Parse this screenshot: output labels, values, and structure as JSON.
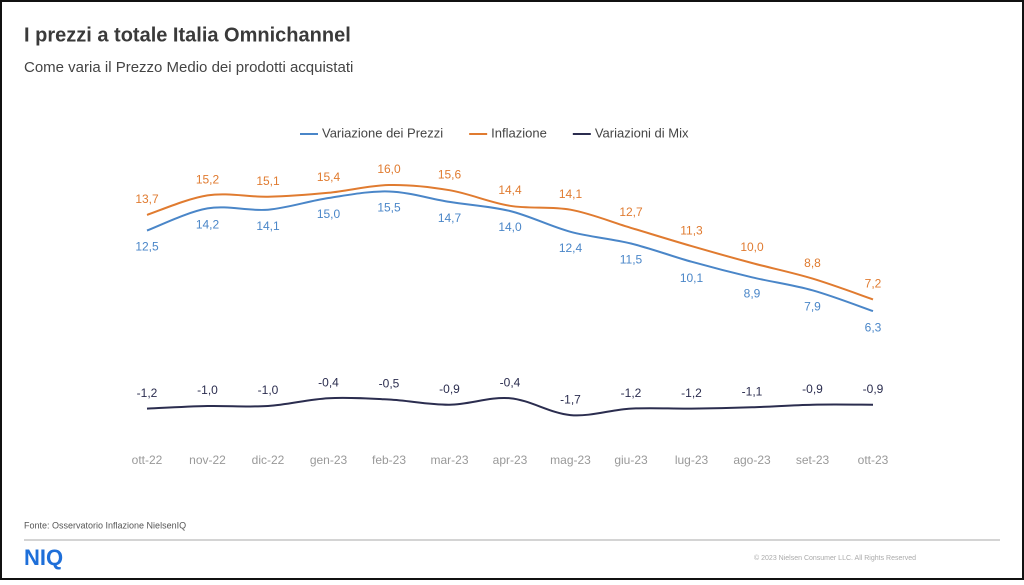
{
  "chart_data": {
    "type": "line",
    "title": "I prezzi a totale Italia Omnichannel",
    "subtitle": "Come varia il Prezzo Medio dei prodotti acquistati",
    "categories": [
      "ott-22",
      "nov-22",
      "dic-22",
      "gen-23",
      "feb-23",
      "mar-23",
      "apr-23",
      "mag-23",
      "giu-23",
      "lug-23",
      "ago-23",
      "set-23",
      "ott-23"
    ],
    "ylim": [
      -3,
      18
    ],
    "legend": "top",
    "series": [
      {
        "name": "Variazione dei Prezzi",
        "color": "#4a86c8",
        "values": [
          12.5,
          14.2,
          14.1,
          15.0,
          15.5,
          14.7,
          14.0,
          12.4,
          11.5,
          10.1,
          8.9,
          7.9,
          6.3
        ],
        "value_labels": [
          "12,5",
          "14,2",
          "14,1",
          "15,0",
          "15,5",
          "14,7",
          "14,0",
          "12,4",
          "11,5",
          "10,1",
          "8,9",
          "7,9",
          "6,3"
        ]
      },
      {
        "name": "Inflazione",
        "color": "#e07b30",
        "values": [
          13.7,
          15.2,
          15.1,
          15.4,
          16.0,
          15.6,
          14.4,
          14.1,
          12.7,
          11.3,
          10.0,
          8.8,
          7.2
        ],
        "value_labels": [
          "13,7",
          "15,2",
          "15,1",
          "15,4",
          "16,0",
          "15,6",
          "14,4",
          "14,1",
          "12,7",
          "11,3",
          "10,0",
          "8,8",
          "7,2"
        ]
      },
      {
        "name": "Variazioni di Mix",
        "color": "#2b2d4f",
        "values": [
          -1.2,
          -1.0,
          -1.0,
          -0.4,
          -0.5,
          -0.9,
          -0.4,
          -1.7,
          -1.2,
          -1.2,
          -1.1,
          -0.9,
          -0.9
        ],
        "value_labels": [
          "-1,2",
          "-1,0",
          "-1,0",
          "-0,4",
          "-0,5",
          "-0,9",
          "-0,4",
          "-1,7",
          "-1,2",
          "-1,2",
          "-1,1",
          "-0,9",
          "-0,9"
        ]
      }
    ]
  },
  "source": "Fonte: Osservatorio Inflazione NielsenIQ",
  "logo": "NIQ",
  "copyright": "© 2023 Nielsen Consumer LLC. All Rights Reserved"
}
